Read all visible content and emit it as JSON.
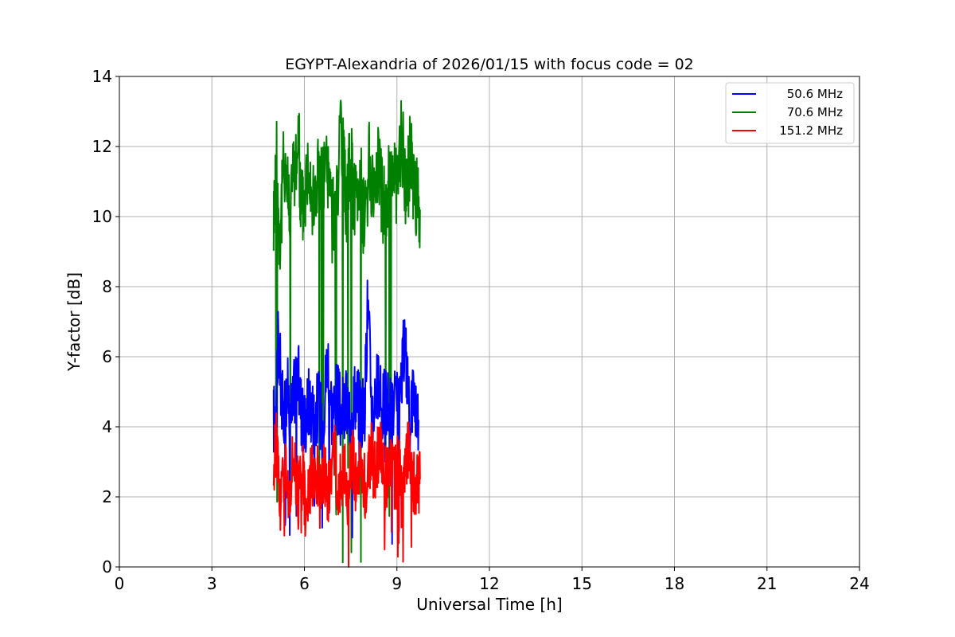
{
  "chart_data": {
    "type": "line",
    "title": "EGYPT-Alexandria of 2026/01/15 with focus code = 02",
    "xlabel": "Universal Time [h]",
    "ylabel": "Y-factor [dB]",
    "xlim": [
      0,
      24
    ],
    "ylim": [
      0,
      14
    ],
    "xticks": [
      0,
      3,
      6,
      9,
      12,
      15,
      18,
      21,
      24
    ],
    "yticks": [
      0,
      2,
      4,
      6,
      8,
      10,
      12,
      14
    ],
    "grid": true,
    "legend_position": "upper right",
    "x_range_of_data": [
      5.0,
      9.75
    ],
    "series": [
      {
        "name": "50.6 MHz",
        "color": "#0000ff",
        "x": [
          5.0,
          5.1,
          5.15,
          5.3,
          5.45,
          5.6,
          5.75,
          5.9,
          6.0,
          6.15,
          6.3,
          6.45,
          6.6,
          6.75,
          6.9,
          7.05,
          7.2,
          7.35,
          7.5,
          7.65,
          7.8,
          7.95,
          8.05,
          8.2,
          8.35,
          8.5,
          8.65,
          8.8,
          8.95,
          9.1,
          9.25,
          9.4,
          9.55,
          9.7
        ],
        "y": [
          4.2,
          4.6,
          6.6,
          4.4,
          5.0,
          4.3,
          5.8,
          4.5,
          4.1,
          4.8,
          4.3,
          4.6,
          4.2,
          6.1,
          4.4,
          4.9,
          4.3,
          4.6,
          4.4,
          5.0,
          4.5,
          4.3,
          7.6,
          4.4,
          5.2,
          4.5,
          4.8,
          4.3,
          4.6,
          4.4,
          6.6,
          4.5,
          5.0,
          4.2
        ]
      },
      {
        "name": "70.6 MHz",
        "color": "#008000",
        "x": [
          5.0,
          5.1,
          5.2,
          5.35,
          5.5,
          5.65,
          5.8,
          5.9,
          6.0,
          6.15,
          6.3,
          6.45,
          6.6,
          6.75,
          6.9,
          7.05,
          7.2,
          7.35,
          7.5,
          7.65,
          7.8,
          7.95,
          8.1,
          8.25,
          8.4,
          8.55,
          8.7,
          8.85,
          9.0,
          9.15,
          9.3,
          9.45,
          9.6,
          9.75
        ],
        "y": [
          10.0,
          11.5,
          9.2,
          11.8,
          10.4,
          11.2,
          12.3,
          10.1,
          10.6,
          11.9,
          10.2,
          11.4,
          10.8,
          11.5,
          9.9,
          11.0,
          12.2,
          10.4,
          11.6,
          10.3,
          11.1,
          9.8,
          11.4,
          10.6,
          11.8,
          10.1,
          10.9,
          11.6,
          10.4,
          12.5,
          10.7,
          11.8,
          10.5,
          10.2
        ]
      },
      {
        "name": "151.2 MHz",
        "color": "#ff0000",
        "x": [
          5.0,
          5.1,
          5.2,
          5.35,
          5.5,
          5.65,
          5.8,
          5.95,
          6.05,
          6.2,
          6.35,
          6.5,
          6.65,
          6.8,
          6.95,
          7.1,
          7.25,
          7.4,
          7.55,
          7.7,
          7.85,
          8.0,
          8.15,
          8.3,
          8.45,
          8.6,
          8.75,
          8.9,
          9.05,
          9.2,
          9.35,
          9.5,
          9.65,
          9.75
        ],
        "y": [
          2.6,
          3.8,
          1.8,
          2.9,
          2.2,
          3.4,
          2.0,
          2.7,
          1.6,
          2.4,
          3.0,
          2.1,
          2.6,
          2.0,
          3.5,
          2.3,
          2.8,
          2.1,
          3.1,
          2.4,
          2.9,
          2.2,
          3.3,
          2.6,
          3.8,
          2.4,
          3.0,
          2.5,
          2.8,
          2.3,
          3.4,
          2.6,
          2.2,
          2.5
        ]
      }
    ]
  }
}
